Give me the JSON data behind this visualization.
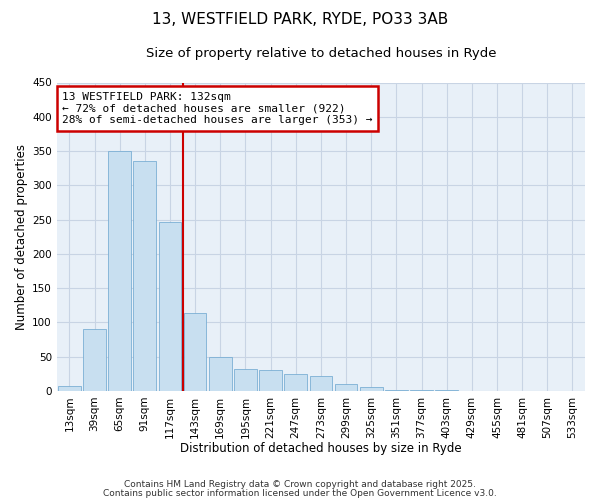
{
  "title": "13, WESTFIELD PARK, RYDE, PO33 3AB",
  "subtitle": "Size of property relative to detached houses in Ryde",
  "xlabel": "Distribution of detached houses by size in Ryde",
  "ylabel": "Number of detached properties",
  "bar_labels": [
    "13sqm",
    "39sqm",
    "65sqm",
    "91sqm",
    "117sqm",
    "143sqm",
    "169sqm",
    "195sqm",
    "221sqm",
    "247sqm",
    "273sqm",
    "299sqm",
    "325sqm",
    "351sqm",
    "377sqm",
    "403sqm",
    "429sqm",
    "455sqm",
    "481sqm",
    "507sqm",
    "533sqm"
  ],
  "bar_values": [
    7,
    90,
    350,
    336,
    247,
    113,
    50,
    32,
    30,
    25,
    21,
    10,
    5,
    1,
    1,
    1,
    0,
    0,
    0,
    0,
    0
  ],
  "bar_color": "#c8dff0",
  "bar_edgecolor": "#7bafd4",
  "vline_x": 4.5,
  "vline_color": "#cc0000",
  "annotation_text_line1": "13 WESTFIELD PARK: 132sqm",
  "annotation_text_line2": "← 72% of detached houses are smaller (922)",
  "annotation_text_line3": "28% of semi-detached houses are larger (353) →",
  "annotation_box_color": "#cc0000",
  "ylim": [
    0,
    450
  ],
  "yticks": [
    0,
    50,
    100,
    150,
    200,
    250,
    300,
    350,
    400,
    450
  ],
  "footer1": "Contains HM Land Registry data © Crown copyright and database right 2025.",
  "footer2": "Contains public sector information licensed under the Open Government Licence v3.0.",
  "bg_color": "#e8f0f8",
  "grid_color": "#c8d4e4",
  "title_fontsize": 11,
  "subtitle_fontsize": 9.5,
  "axis_label_fontsize": 8.5,
  "tick_fontsize": 7.5,
  "annotation_fontsize": 8,
  "footer_fontsize": 6.5
}
